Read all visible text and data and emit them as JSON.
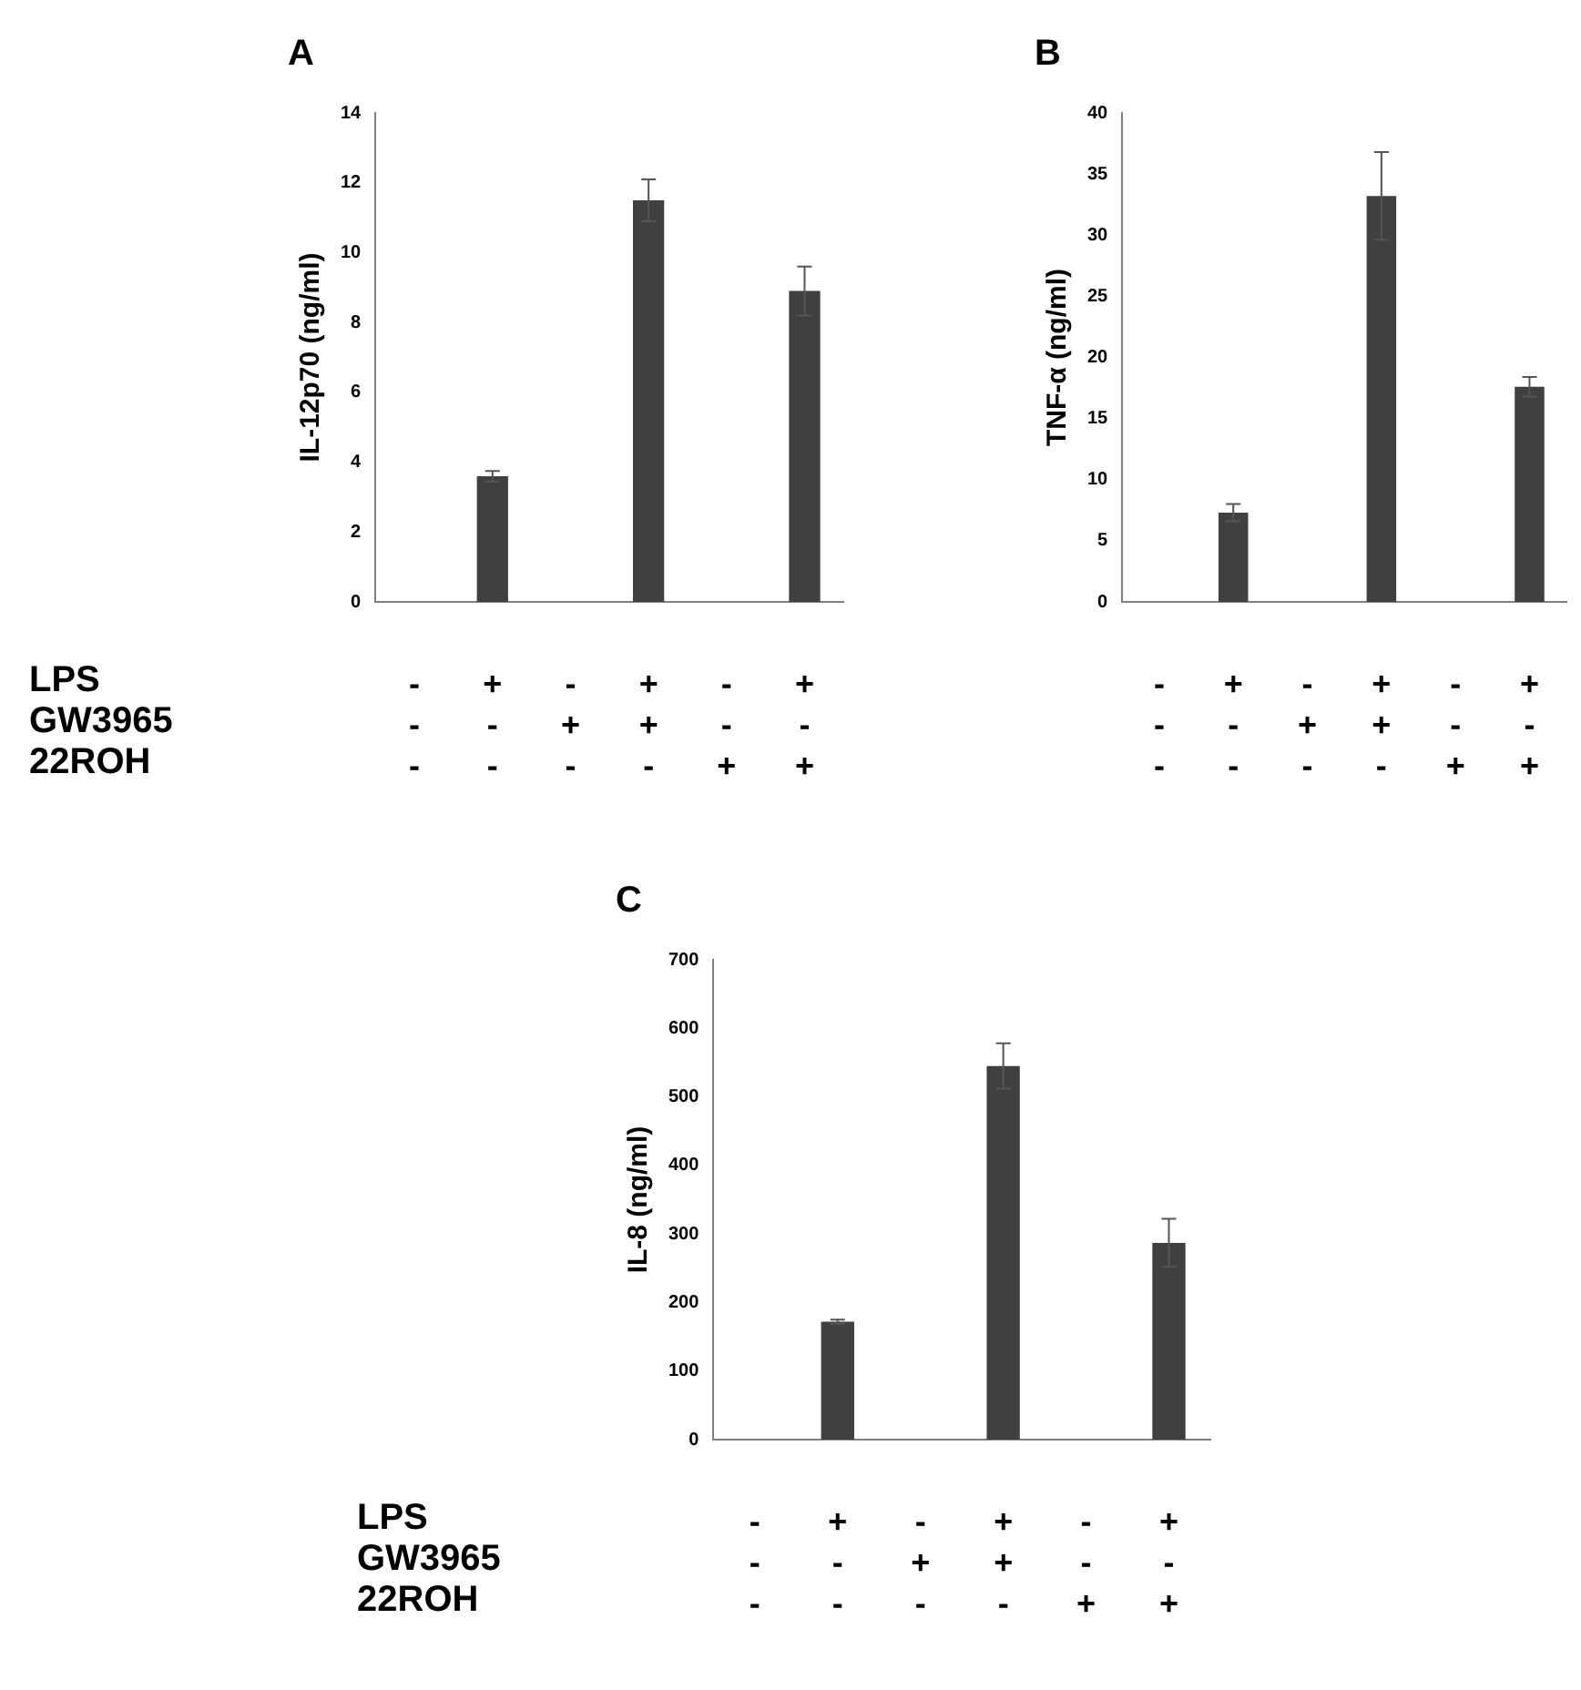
{
  "chart_data": [
    {
      "type": "bar",
      "title": "A",
      "ylabel": "IL-12p70 (ng/ml)",
      "categories": [
        "-\n-\n-",
        "+\n-\n-",
        "-\n+\n-",
        "+\n+\n-",
        "-\n-\n+",
        "+\n-\n+"
      ],
      "values": [
        0,
        3.6,
        0,
        11.5,
        0,
        8.9
      ],
      "errors": [
        null,
        0.15,
        null,
        0.6,
        null,
        0.7
      ],
      "color": "#404040",
      "ylim": [
        0,
        14
      ],
      "yticks": [
        0,
        2,
        4,
        6,
        8,
        10,
        12,
        14
      ],
      "grid": false,
      "legend": false,
      "annotations": [
        "LPS",
        "GW3965",
        "22ROH"
      ]
    },
    {
      "type": "bar",
      "title": "B",
      "ylabel": "TNF-α (ng/ml)",
      "categories": [
        "-\n-\n-",
        "+\n-\n-",
        "-\n+\n-",
        "+\n+\n-",
        "-\n-\n+",
        "+\n-\n+"
      ],
      "values": [
        0,
        7.3,
        0,
        33.2,
        0,
        17.6
      ],
      "errors": [
        null,
        0.7,
        null,
        3.6,
        null,
        0.8
      ],
      "color": "#404040",
      "ylim": [
        0,
        40
      ],
      "yticks": [
        0,
        5,
        10,
        15,
        20,
        25,
        30,
        35,
        40
      ],
      "grid": false,
      "legend": false
    },
    {
      "type": "bar",
      "title": "C",
      "ylabel": "IL-8 (ng/ml)",
      "categories": [
        "-\n-\n-",
        "+\n-\n-",
        "-\n+\n-",
        "+\n+\n-",
        "-\n-\n+",
        "+\n-\n+"
      ],
      "values": [
        0,
        172,
        0,
        545,
        0,
        287
      ],
      "errors": [
        null,
        3,
        null,
        33,
        null,
        35
      ],
      "color": "#404040",
      "ylim": [
        0,
        700
      ],
      "yticks": [
        0,
        100,
        200,
        300,
        400,
        500,
        600,
        700
      ],
      "grid": false,
      "legend": false,
      "annotations": [
        "LPS",
        "GW3965",
        "22ROH"
      ]
    }
  ]
}
